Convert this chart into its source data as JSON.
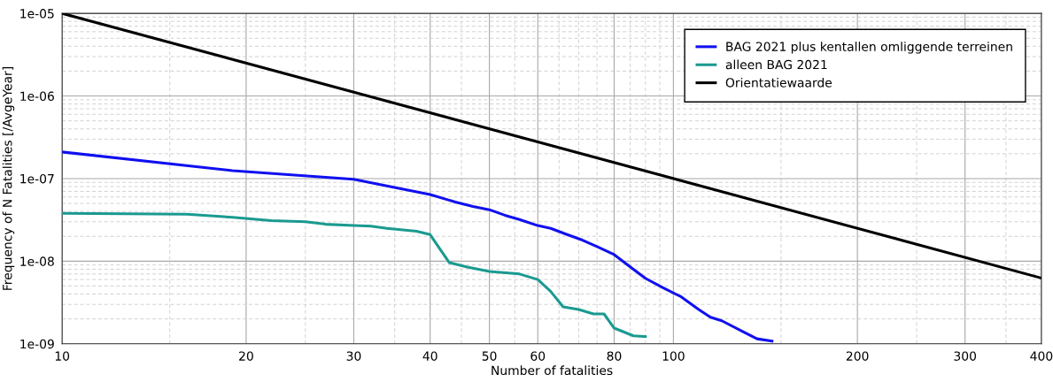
{
  "chart_data": {
    "type": "line",
    "xlabel": "Number of fatalities",
    "ylabel": "Frequency of N Fatalities [/AvgeYear]",
    "log": "xy",
    "xlim": [
      10,
      400
    ],
    "ylim": [
      1e-09,
      1e-05
    ],
    "xticks": [
      10,
      20,
      30,
      40,
      50,
      60,
      80,
      100,
      200,
      300,
      400
    ],
    "yticks": [
      {
        "value": 1e-09,
        "label": "1e-09"
      },
      {
        "value": 1e-08,
        "label": "1e-08"
      },
      {
        "value": 1e-07,
        "label": "1e-07"
      },
      {
        "value": 1e-06,
        "label": "1e-06"
      },
      {
        "value": 1e-05,
        "label": "1e-05"
      }
    ],
    "grid": true,
    "legend": "top right",
    "line_style": "solid",
    "marker": "none",
    "series": [
      {
        "name": "BAG 2021 plus kentallen omliggende terreinen",
        "color": "#1010f0",
        "x": [
          10,
          19,
          30,
          33,
          40,
          44,
          47,
          50,
          53,
          56,
          60,
          63,
          67,
          71,
          75,
          80,
          86,
          90,
          96,
          103,
          110,
          115,
          120,
          130,
          137,
          145
        ],
        "values": [
          2.1e-07,
          1.25e-07,
          9.8e-08,
          8.5e-08,
          6.4e-08,
          5.2e-08,
          4.6e-08,
          4.2e-08,
          3.6e-08,
          3.2e-08,
          2.7e-08,
          2.5e-08,
          2.1e-08,
          1.8e-08,
          1.5e-08,
          1.2e-08,
          8e-09,
          6.2e-09,
          4.8e-09,
          3.7e-09,
          2.6e-09,
          2.1e-09,
          1.9e-09,
          1.4e-09,
          1.15e-09,
          1.08e-09
        ]
      },
      {
        "name": "alleen BAG 2021",
        "color": "#1a9a90",
        "x": [
          10,
          16,
          19,
          22,
          25,
          27,
          30,
          32,
          34,
          38,
          40,
          43,
          46,
          50,
          56,
          60,
          63,
          66,
          70,
          74,
          77,
          80,
          86,
          90
        ],
        "values": [
          3.8e-08,
          3.7e-08,
          3.4e-08,
          3.1e-08,
          3e-08,
          2.8e-08,
          2.7e-08,
          2.65e-08,
          2.5e-08,
          2.3e-08,
          2.1e-08,
          9.6e-09,
          8.5e-09,
          7.5e-09,
          7e-09,
          6e-09,
          4.3e-09,
          2.8e-09,
          2.6e-09,
          2.3e-09,
          2.3e-09,
          1.55e-09,
          1.25e-09,
          1.22e-09
        ]
      },
      {
        "name": "Orientatiewaarde",
        "color": "#000000",
        "x": [
          10,
          400
        ],
        "values": [
          1e-05,
          6.25e-09
        ]
      }
    ]
  }
}
